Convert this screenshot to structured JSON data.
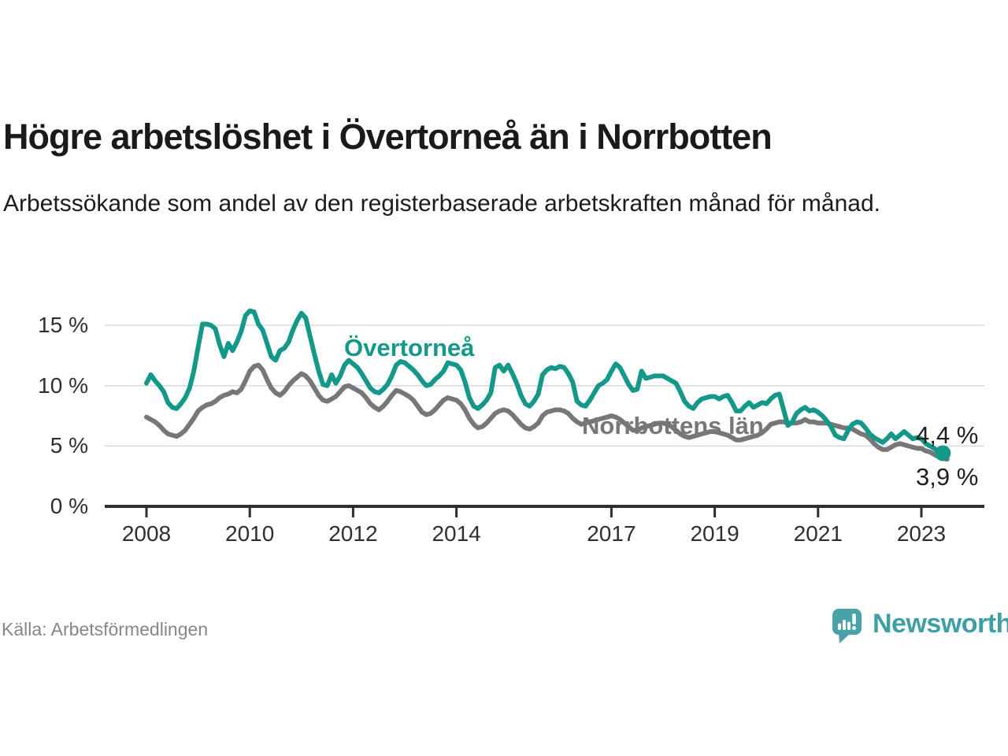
{
  "title": "Högre arbetslöshet i Övertorneå än i Norrbotten",
  "subtitle": "Arbetssökande som andel av den registerbaserade arbetskraften månad för månad.",
  "source": "Källa: Arbetsförmedlingen",
  "logo": {
    "wordmark": "Newsworthy",
    "icon": "newsworthy-speech-bubble-chart-icon",
    "icon_color": "#47a3a7",
    "text_color": "#3fa0a4"
  },
  "chart_data": {
    "type": "line",
    "title": "Högre arbetslöshet i Övertorneå än i Norrbotten",
    "xlabel": "",
    "ylabel": "Arbetssökande som andel av den registerbaserade arbetskraften",
    "x_start_month": "2008-01",
    "frequency": "monthly",
    "grid": "horizontal-only",
    "ylim": [
      0,
      17
    ],
    "y_ticks": [
      0,
      5,
      10,
      15
    ],
    "y_tick_labels": [
      "0 %",
      "5 %",
      "10 %",
      "15 %"
    ],
    "x_tick_years": [
      2008,
      2010,
      2012,
      2014,
      2017,
      2019,
      2021,
      2023
    ],
    "x_tick_labels": [
      "2008",
      "2010",
      "2012",
      "2014",
      "2017",
      "2019",
      "2021",
      "2023"
    ],
    "axis_color": "#2e2e2e",
    "gridline_color": "#dadada",
    "series": [
      {
        "name": "Övertorneå",
        "label_annotation": "Övertorneå",
        "color": "#14988a",
        "end_label": "4,4 %",
        "end_value": 4.4,
        "end_month": "2023-06",
        "end_marker": true,
        "values": [
          10.2,
          10.9,
          10.4,
          10.0,
          9.5,
          8.6,
          8.2,
          8.1,
          8.5,
          9.0,
          9.8,
          11.2,
          13.2,
          15.1,
          15.1,
          15.0,
          14.7,
          13.4,
          12.4,
          13.5,
          12.9,
          13.6,
          14.5,
          15.8,
          16.2,
          16.1,
          15.1,
          14.6,
          13.5,
          12.4,
          12.1,
          12.9,
          13.1,
          13.6,
          14.6,
          15.4,
          16.0,
          15.6,
          14.1,
          12.6,
          11.2,
          10.1,
          10.0,
          10.9,
          10.2,
          10.8,
          11.7,
          12.1,
          11.8,
          11.5,
          11.0,
          10.4,
          9.8,
          9.5,
          9.4,
          9.7,
          10.1,
          10.8,
          11.7,
          12.0,
          11.9,
          11.6,
          11.3,
          10.9,
          10.4,
          10.0,
          10.1,
          10.5,
          10.8,
          11.2,
          11.9,
          11.8,
          11.7,
          11.3,
          10.3,
          9.0,
          8.3,
          8.1,
          8.4,
          8.8,
          9.4,
          11.5,
          11.7,
          11.2,
          11.7,
          11.0,
          10.2,
          9.2,
          8.5,
          8.3,
          8.7,
          9.3,
          10.9,
          11.3,
          11.5,
          11.4,
          11.6,
          11.5,
          11.0,
          10.3,
          8.7,
          8.4,
          8.3,
          8.8,
          9.4,
          10.0,
          10.2,
          10.5,
          11.2,
          11.8,
          11.5,
          10.8,
          10.1,
          9.6,
          9.7,
          11.2,
          10.6,
          10.7,
          10.8,
          10.8,
          10.8,
          10.6,
          10.4,
          10.2,
          9.5,
          8.7,
          8.3,
          8.1,
          8.6,
          8.9,
          9.0,
          9.1,
          9.1,
          8.9,
          9.1,
          9.2,
          8.6,
          7.9,
          7.9,
          8.3,
          8.6,
          8.2,
          8.4,
          8.6,
          8.5,
          8.9,
          9.2,
          9.3,
          8.0,
          6.7,
          7.0,
          7.7,
          8.0,
          8.2,
          7.9,
          8.0,
          7.8,
          7.5,
          7.1,
          6.6,
          5.9,
          5.7,
          5.6,
          6.3,
          6.8,
          7.0,
          6.9,
          6.5,
          6.0,
          5.7,
          5.5,
          5.3,
          5.6,
          6.0,
          5.6,
          5.9,
          6.2,
          5.9,
          5.6,
          5.7,
          5.6,
          5.2,
          5.0,
          4.8,
          4.5,
          4.4
        ]
      },
      {
        "name": "Norrbottens län",
        "label_annotation": "Norrbottens län",
        "color": "#77777a",
        "end_label": "3,9 %",
        "end_value": 3.9,
        "end_month": "2023-07",
        "end_marker": false,
        "values": [
          7.4,
          7.2,
          7.0,
          6.7,
          6.3,
          6.0,
          5.9,
          5.8,
          6.0,
          6.3,
          6.8,
          7.3,
          7.9,
          8.2,
          8.4,
          8.5,
          8.7,
          9.0,
          9.2,
          9.3,
          9.5,
          9.4,
          9.7,
          10.4,
          11.2,
          11.6,
          11.7,
          11.3,
          10.5,
          9.8,
          9.4,
          9.2,
          9.5,
          10.0,
          10.4,
          10.7,
          11.0,
          10.8,
          10.4,
          9.8,
          9.2,
          8.8,
          8.7,
          8.9,
          9.1,
          9.5,
          9.9,
          10.0,
          9.8,
          9.6,
          9.4,
          9.0,
          8.5,
          8.2,
          8.0,
          8.3,
          8.7,
          9.2,
          9.6,
          9.5,
          9.3,
          9.1,
          8.8,
          8.3,
          7.8,
          7.6,
          7.7,
          8.0,
          8.4,
          8.8,
          9.0,
          8.9,
          8.8,
          8.5,
          8.0,
          7.3,
          6.8,
          6.5,
          6.6,
          6.9,
          7.3,
          7.7,
          7.9,
          8.0,
          7.9,
          7.6,
          7.2,
          6.8,
          6.5,
          6.4,
          6.6,
          6.9,
          7.5,
          7.8,
          7.9,
          8.0,
          8.0,
          7.9,
          7.7,
          7.3,
          7.0,
          6.8,
          6.9,
          7.0,
          7.1,
          7.2,
          7.3,
          7.4,
          7.5,
          7.4,
          7.2,
          6.9,
          6.6,
          6.3,
          6.3,
          6.5,
          6.6,
          6.7,
          6.8,
          6.9,
          6.9,
          6.8,
          6.6,
          6.3,
          6.0,
          5.8,
          5.7,
          5.8,
          5.9,
          6.0,
          6.1,
          6.2,
          6.2,
          6.1,
          6.0,
          5.9,
          5.7,
          5.5,
          5.5,
          5.6,
          5.7,
          5.8,
          5.9,
          6.1,
          6.4,
          6.8,
          6.9,
          7.0,
          7.0,
          6.9,
          6.9,
          6.9,
          7.0,
          7.2,
          7.0,
          7.0,
          6.9,
          6.9,
          6.9,
          6.8,
          6.7,
          6.6,
          6.5,
          6.5,
          6.4,
          6.2,
          6.0,
          5.9,
          5.6,
          5.2,
          4.9,
          4.7,
          4.7,
          4.9,
          5.1,
          5.2,
          5.1,
          5.0,
          4.9,
          4.8,
          4.8,
          4.6,
          4.5,
          4.3,
          4.1,
          4.0,
          3.9
        ]
      }
    ]
  }
}
